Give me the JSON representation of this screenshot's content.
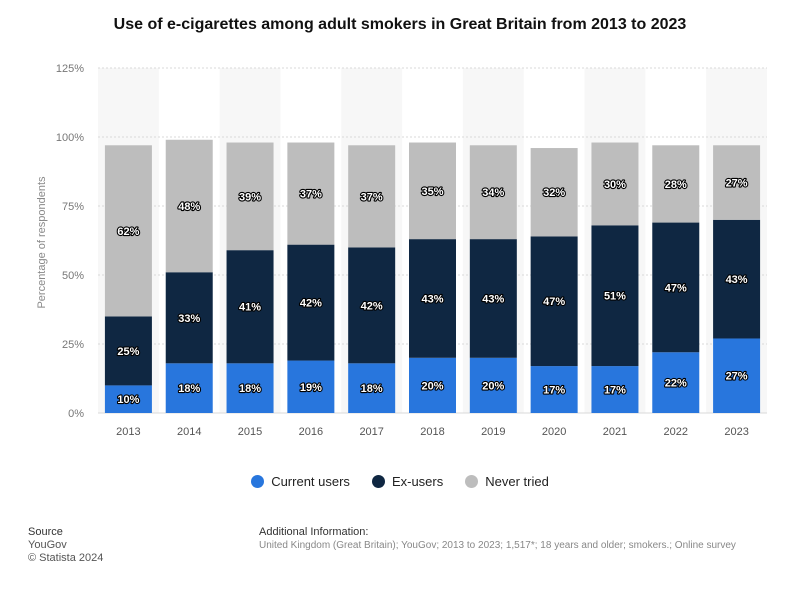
{
  "page_title": "Use of e-cigarettes among adult smokers in Great Britain from 2013 to 2023",
  "chart_data": {
    "type": "bar",
    "stacked": true,
    "title": "Use of e-cigarettes among adult smokers in Great Britain from 2013 to 2023",
    "xlabel": "",
    "ylabel": "Percentage of respondents",
    "ylim": [
      0,
      125
    ],
    "yticks": [
      0,
      25,
      50,
      75,
      100,
      125
    ],
    "ytick_labels": [
      "0%",
      "25%",
      "50%",
      "75%",
      "100%",
      "125%"
    ],
    "categories": [
      "2013",
      "2014",
      "2015",
      "2016",
      "2017",
      "2018",
      "2019",
      "2020",
      "2021",
      "2022",
      "2023"
    ],
    "series": [
      {
        "name": "Current users",
        "color": "#2876dd",
        "values": [
          10,
          18,
          18,
          19,
          18,
          20,
          20,
          17,
          17,
          22,
          27
        ]
      },
      {
        "name": "Ex-users",
        "color": "#0f2742",
        "values": [
          25,
          33,
          41,
          42,
          42,
          43,
          43,
          47,
          51,
          47,
          43
        ]
      },
      {
        "name": "Never tried",
        "color": "#bdbdbd",
        "values": [
          62,
          48,
          39,
          37,
          37,
          35,
          34,
          32,
          30,
          28,
          27
        ]
      }
    ],
    "value_suffix": "%",
    "grid": true,
    "legend_position": "bottom"
  },
  "legend": {
    "items": [
      {
        "label": "Current users",
        "color": "#2876dd"
      },
      {
        "label": "Ex-users",
        "color": "#0f2742"
      },
      {
        "label": "Never tried",
        "color": "#bdbdbd"
      }
    ]
  },
  "footer": {
    "source_head": "Source",
    "source_name": "YouGov",
    "copyright": "© Statista 2024",
    "info_head": "Additional Information:",
    "info_text": "United Kingdom (Great Britain); YouGov; 2013 to 2023; 1,517*; 18 years and older; smokers.; Online survey"
  }
}
